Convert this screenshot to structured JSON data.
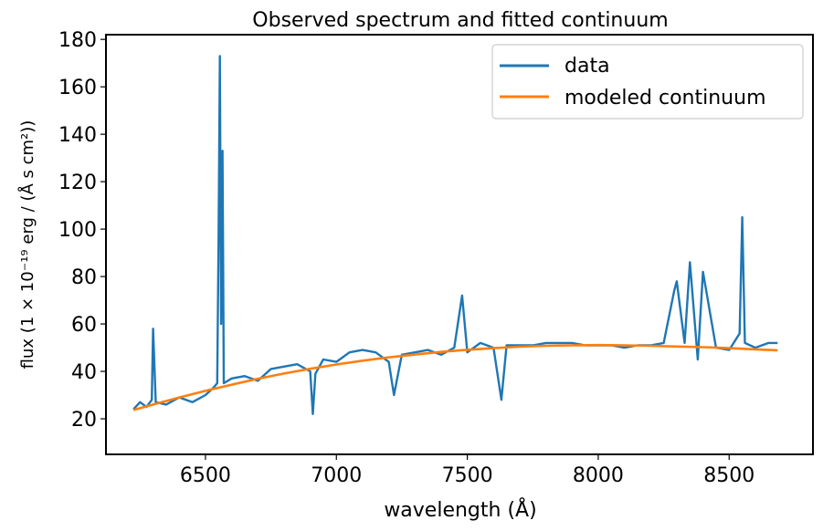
{
  "chart_data": {
    "type": "line",
    "title": "Observed spectrum and fitted continuum",
    "xlabel": "wavelength (Å)",
    "ylabel": "flux (1 × 10⁻¹⁹ erg / (Å s cm²))",
    "xlim": [
      6120,
      8820
    ],
    "ylim": [
      5,
      182
    ],
    "xticks": [
      6500,
      7000,
      7500,
      8000,
      8500
    ],
    "yticks": [
      20,
      40,
      60,
      80,
      100,
      120,
      140,
      160,
      180
    ],
    "legend_position": "upper right",
    "grid": false,
    "series": [
      {
        "name": "data",
        "color": "#1f77b4",
        "x": [
          6225,
          6250,
          6275,
          6295,
          6300,
          6310,
          6350,
          6400,
          6450,
          6500,
          6530,
          6545,
          6550,
          6555,
          6560,
          6565,
          6570,
          6600,
          6650,
          6700,
          6750,
          6800,
          6850,
          6900,
          6910,
          6920,
          6950,
          7000,
          7050,
          7100,
          7150,
          7200,
          7220,
          7250,
          7300,
          7350,
          7400,
          7450,
          7480,
          7500,
          7550,
          7600,
          7630,
          7650,
          7700,
          7750,
          7800,
          7850,
          7900,
          7950,
          8000,
          8050,
          8100,
          8150,
          8200,
          8250,
          8290,
          8300,
          8330,
          8350,
          8380,
          8400,
          8450,
          8500,
          8540,
          8550,
          8560,
          8600,
          8650,
          8685
        ],
        "y": [
          24,
          27,
          25,
          28,
          58,
          27,
          26,
          29,
          27,
          30,
          33,
          35,
          96,
          173,
          60,
          133,
          35,
          37,
          38,
          36,
          41,
          42,
          43,
          40,
          22,
          39,
          45,
          44,
          48,
          49,
          48,
          44,
          30,
          47,
          48,
          49,
          47,
          50,
          72,
          48,
          52,
          50,
          28,
          51,
          51,
          51,
          52,
          52,
          52,
          51,
          51,
          51,
          50,
          51,
          51,
          52,
          74,
          78,
          52,
          86,
          45,
          82,
          50,
          49,
          56,
          105,
          52,
          50,
          52,
          52
        ]
      },
      {
        "name": "modeled continuum",
        "color": "#ff7f0e",
        "x": [
          6225,
          6300,
          6400,
          6500,
          6600,
          6700,
          6800,
          6900,
          7000,
          7100,
          7200,
          7300,
          7400,
          7500,
          7600,
          7700,
          7800,
          7900,
          8000,
          8100,
          8200,
          8300,
          8400,
          8500,
          8600,
          8685
        ],
        "y": [
          23.7,
          26.0,
          29.0,
          31.8,
          34.4,
          36.9,
          39.1,
          41.1,
          42.9,
          44.5,
          45.9,
          47.1,
          48.2,
          49.1,
          49.8,
          50.4,
          50.8,
          51.0,
          51.1,
          51.0,
          50.8,
          50.5,
          50.2,
          49.8,
          49.3,
          48.9
        ]
      }
    ]
  }
}
